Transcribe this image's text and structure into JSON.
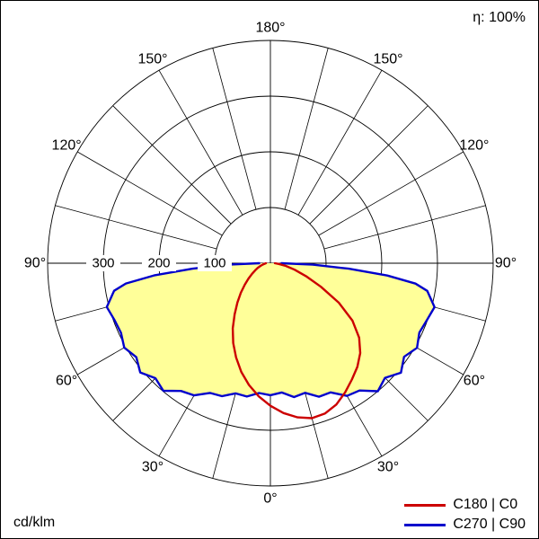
{
  "chart_data": {
    "type": "line",
    "coordinate_system": "polar",
    "description": "Luminous intensity distribution curve (polar photometric diagram)",
    "unit_label": "cd/klm",
    "efficiency_label": "η: 100%",
    "radial_range": [
      0,
      400
    ],
    "radial_ticks": [
      100,
      200,
      300
    ],
    "radial_tick_labels": [
      "100",
      "200",
      "300"
    ],
    "grid": {
      "spoke_step_deg": 15,
      "circles_visible": true
    },
    "legend_position": "bottom-right",
    "gamma_convention": "0 deg = nadir (bottom), 180 deg = zenith (top); negative = left half plane, positive = right half plane",
    "angle_labels": [
      {
        "text": "180°",
        "gamma": 180
      },
      {
        "text": "150°",
        "gamma": -150
      },
      {
        "text": "150°",
        "gamma": 150
      },
      {
        "text": "120°",
        "gamma": -120
      },
      {
        "text": "120°",
        "gamma": 120
      },
      {
        "text": "90°",
        "gamma": -90
      },
      {
        "text": "90°",
        "gamma": 90
      },
      {
        "text": "60°",
        "gamma": -60
      },
      {
        "text": "60°",
        "gamma": 60
      },
      {
        "text": "30°",
        "gamma": -30
      },
      {
        "text": "30°",
        "gamma": 30
      },
      {
        "text": "0°",
        "gamma": 0
      }
    ],
    "series": [
      {
        "id": "c180-c0",
        "name": "C180 | C0",
        "color": "#cc0000",
        "fill": null,
        "points": [
          [
            -90,
            8
          ],
          [
            -85,
            10
          ],
          [
            -80,
            14
          ],
          [
            -75,
            18
          ],
          [
            -70,
            24
          ],
          [
            -65,
            30
          ],
          [
            -60,
            38
          ],
          [
            -55,
            48
          ],
          [
            -50,
            60
          ],
          [
            -45,
            75
          ],
          [
            -40,
            92
          ],
          [
            -35,
            112
          ],
          [
            -30,
            135
          ],
          [
            -25,
            158
          ],
          [
            -20,
            180
          ],
          [
            -15,
            202
          ],
          [
            -10,
            222
          ],
          [
            -5,
            240
          ],
          [
            0,
            256
          ],
          [
            5,
            270
          ],
          [
            10,
            281
          ],
          [
            15,
            288
          ],
          [
            20,
            287
          ],
          [
            25,
            280
          ],
          [
            30,
            268
          ],
          [
            35,
            255
          ],
          [
            40,
            243
          ],
          [
            45,
            228
          ],
          [
            50,
            208
          ],
          [
            55,
            180
          ],
          [
            60,
            142
          ],
          [
            65,
            100
          ],
          [
            70,
            68
          ],
          [
            75,
            45
          ],
          [
            80,
            28
          ],
          [
            85,
            15
          ],
          [
            90,
            8
          ]
        ]
      },
      {
        "id": "c270-c90",
        "name": "C270 | C90",
        "color": "#0000cc",
        "fill": "#ffff99",
        "points": [
          [
            -90,
            20
          ],
          [
            -88,
            75
          ],
          [
            -86,
            140
          ],
          [
            -84,
            210
          ],
          [
            -82,
            262
          ],
          [
            -80,
            285
          ],
          [
            -75,
            304
          ],
          [
            -70,
            298
          ],
          [
            -65,
            296
          ],
          [
            -60,
            303
          ],
          [
            -55,
            294
          ],
          [
            -50,
            305
          ],
          [
            -45,
            292
          ],
          [
            -40,
            299
          ],
          [
            -35,
            280
          ],
          [
            -30,
            274
          ],
          [
            -25,
            257
          ],
          [
            -20,
            254
          ],
          [
            -15,
            242
          ],
          [
            -10,
            243
          ],
          [
            -5,
            234
          ],
          [
            0,
            237
          ],
          [
            5,
            233
          ],
          [
            10,
            244
          ],
          [
            15,
            241
          ],
          [
            20,
            255
          ],
          [
            25,
            256
          ],
          [
            30,
            275
          ],
          [
            35,
            279
          ],
          [
            40,
            300
          ],
          [
            45,
            291
          ],
          [
            50,
            306
          ],
          [
            55,
            293
          ],
          [
            60,
            304
          ],
          [
            65,
            295
          ],
          [
            70,
            299
          ],
          [
            75,
            305
          ],
          [
            80,
            286
          ],
          [
            82,
            263
          ],
          [
            84,
            211
          ],
          [
            86,
            141
          ],
          [
            88,
            76
          ],
          [
            90,
            20
          ]
        ]
      }
    ],
    "style": {
      "grid_color": "#000000",
      "fill_color": "#ffff99",
      "red_curve_color": "#cc0000",
      "blue_curve_color": "#0000cc",
      "background": "#ffffff"
    },
    "layout": {
      "center_x": 300,
      "center_y": 292,
      "outer_radius_px": 248,
      "angle_label_radius_px": 262
    }
  }
}
